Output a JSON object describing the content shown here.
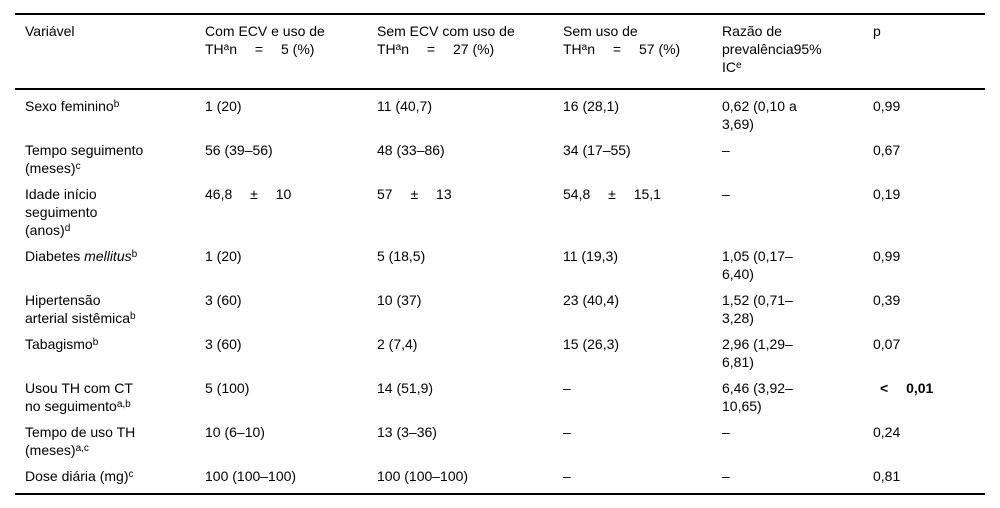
{
  "table": {
    "columns": [
      {
        "label": "Variável",
        "width": 190
      },
      {
        "label": "Com ECV e uso de\nTH^{a}n  =  5 (%)",
        "width": 172
      },
      {
        "label": "Sem ECV com uso de\nTH^{a}n  =  27 (%)",
        "width": 186
      },
      {
        "label": "Sem uso de\nTH^{a}n  =  57 (%)",
        "width": 159
      },
      {
        "label": "Razão de\nprevalência95%\nIC^{e}",
        "width": 151
      },
      {
        "label": "p",
        "width": 112
      }
    ],
    "rows": [
      {
        "cells": [
          "Sexo feminino^{b}",
          "1 (20)",
          "11 (40,7)",
          "16 (28,1)",
          "0,62 (0,10 a\n3,69)",
          "0,99"
        ]
      },
      {
        "cells": [
          "Tempo seguimento\n(meses)^{c}",
          "56 (39–56)",
          "48 (33–86)",
          "34 (17–55)",
          "–",
          "0,67"
        ]
      },
      {
        "cells": [
          "Idade início\nseguimento\n(anos)^{d}",
          "46,8  ±  10",
          "57  ±  13",
          "54,8  ±  15,1",
          "–",
          "0,19"
        ]
      },
      {
        "cells": [
          "Diabetes *mellitus*^{b}",
          "1 (20)",
          "5 (18,5)",
          "11 (19,3)",
          "1,05 (0,17–\n6,40)",
          "0,99"
        ]
      },
      {
        "cells": [
          "Hipertensão\narterial sistêmica^{b}",
          "3 (60)",
          "10 (37)",
          "23 (40,4)",
          "1,52 (0,71–\n3,28)",
          "0,39"
        ]
      },
      {
        "cells": [
          "Tabagismo^{b}",
          "3 (60)",
          "2 (7,4)",
          "15 (26,3)",
          "2,96 (1,29–\n6,81)",
          "0,07"
        ]
      },
      {
        "cells": [
          "Usou TH com CT\nno seguimento^{a,b}",
          "5 (100)",
          "14 (51,9)",
          "–",
          "6,46 (3,92–\n10,65)",
          " **<  0,01**"
        ]
      },
      {
        "cells": [
          "Tempo de uso TH\n(meses)^{a,c}",
          "10 (6–10)",
          "13 (3–36)",
          "–",
          "–",
          "0,24"
        ]
      },
      {
        "cells": [
          "Dose diária (mg)^{c}",
          "100 (100–100)",
          "100 (100–100)",
          "–",
          "–",
          "0,81"
        ]
      }
    ]
  }
}
